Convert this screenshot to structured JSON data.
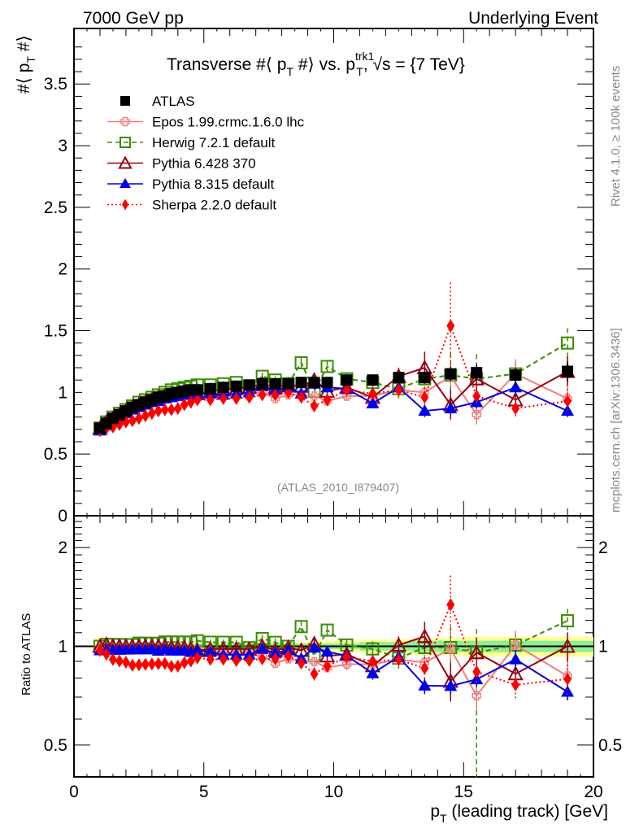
{
  "header": {
    "left": "7000 GeV pp",
    "right": "Underlying Event"
  },
  "side_text": {
    "rivet": "Rivet 4.1.0, ≥ 100k events",
    "mcplots": "mcplots.cern.ch [arXiv:1306.3436]"
  },
  "colors": {
    "ATLAS": "#000000",
    "Epos": "#f08080",
    "Herwig": "#3c8c00",
    "Pythia6": "#960014",
    "Pythia8": "#0000e6",
    "Sherpa": "#ff0000",
    "band_inner": "#90ee90",
    "band_outer": "#ffff99"
  },
  "chart_data": [
    {
      "type": "scatter",
      "title": "Transverse #⟨ p_T #⟩ vs. p_T^trk1, √s = {7 TeV}",
      "title_parts": {
        "a": "Transverse #⟨ p",
        "sub1": "T",
        "b": " #⟩ vs. p",
        "sup": "trk1",
        "sub2": "T",
        "c": ", √s = {7 TeV}"
      },
      "ylabel": "#⟨ p_T #⟩",
      "ylabel_parts": {
        "a": "#⟨ p",
        "sub": "T",
        "b": " #⟩"
      },
      "xlabel": "",
      "xlim": [
        0,
        20.3
      ],
      "ylim": [
        0,
        3.95
      ],
      "yscale": "linear",
      "yticks": [
        0,
        0.5,
        1,
        1.5,
        2,
        2.5,
        3,
        3.5
      ],
      "ytick_labels": [
        "0",
        "0.5",
        "1",
        "1.5",
        "2",
        "2.5",
        "3",
        "3.5"
      ],
      "annotation": "(ATLAS_2010_I879407)",
      "legend_position": "top-left",
      "x": [
        1.0,
        1.25,
        1.5,
        1.75,
        2.0,
        2.25,
        2.5,
        2.75,
        3.0,
        3.25,
        3.5,
        3.75,
        4.0,
        4.25,
        4.5,
        4.75,
        5.25,
        5.75,
        6.25,
        6.75,
        7.25,
        7.75,
        8.25,
        8.75,
        9.25,
        9.75,
        10.5,
        11.5,
        12.5,
        13.5,
        14.5,
        15.5,
        17,
        19
      ],
      "series": [
        {
          "name": "ATLAS",
          "key": "ATLAS",
          "marker": "square-filled",
          "line": "none",
          "values": [
            0.71,
            0.75,
            0.79,
            0.82,
            0.85,
            0.88,
            0.9,
            0.92,
            0.94,
            0.96,
            0.97,
            0.99,
            1.0,
            1.01,
            1.02,
            1.02,
            1.03,
            1.04,
            1.05,
            1.06,
            1.07,
            1.07,
            1.07,
            1.08,
            1.08,
            1.08,
            1.1,
            1.1,
            1.12,
            1.12,
            1.15,
            1.16,
            1.14,
            1.17
          ],
          "err": [
            0.02,
            0.02,
            0.02,
            0.02,
            0.02,
            0.02,
            0.02,
            0.02,
            0.02,
            0.02,
            0.02,
            0.02,
            0.02,
            0.02,
            0.02,
            0.02,
            0.02,
            0.02,
            0.02,
            0.02,
            0.02,
            0.02,
            0.02,
            0.02,
            0.03,
            0.03,
            0.03,
            0.04,
            0.04,
            0.05,
            0.06,
            0.06,
            0.06,
            0.08
          ]
        },
        {
          "name": "Epos 1.99.crmc.1.6.0 lhc",
          "key": "Epos",
          "marker": "cross-open",
          "line": "solid",
          "values": [
            0.7,
            0.74,
            0.78,
            0.81,
            0.84,
            0.87,
            0.89,
            0.91,
            0.93,
            0.95,
            0.96,
            0.97,
            0.98,
            0.99,
            1.0,
            1.0,
            1.0,
            1.0,
            1.0,
            1.0,
            1.0,
            0.95,
            0.98,
            0.98,
            0.97,
            0.93,
            0.97,
            0.97,
            1.02,
            1.0,
            1.13,
            0.82,
            1.15,
            0.95
          ],
          "err": [
            0.01,
            0.01,
            0.01,
            0.01,
            0.01,
            0.01,
            0.01,
            0.01,
            0.01,
            0.01,
            0.01,
            0.01,
            0.01,
            0.01,
            0.01,
            0.01,
            0.02,
            0.02,
            0.02,
            0.02,
            0.02,
            0.03,
            0.03,
            0.03,
            0.03,
            0.03,
            0.04,
            0.04,
            0.05,
            0.05,
            0.08,
            0.08,
            0.12,
            0.14
          ]
        },
        {
          "name": "Herwig 7.2.1 default",
          "key": "Herwig",
          "marker": "square-open",
          "line": "dashed",
          "values": [
            0.71,
            0.76,
            0.8,
            0.83,
            0.86,
            0.89,
            0.92,
            0.94,
            0.96,
            0.98,
            1.0,
            1.02,
            1.03,
            1.04,
            1.05,
            1.06,
            1.06,
            1.07,
            1.08,
            1.05,
            1.13,
            1.1,
            1.07,
            1.24,
            1.01,
            1.21,
            1.11,
            1.08,
            1.03,
            1.11,
            1.14,
            1.11,
            1.15,
            1.4
          ],
          "err": [
            0.01,
            0.01,
            0.01,
            0.01,
            0.01,
            0.01,
            0.01,
            0.01,
            0.01,
            0.01,
            0.01,
            0.01,
            0.01,
            0.01,
            0.02,
            0.02,
            0.02,
            0.02,
            0.02,
            0.02,
            0.03,
            0.03,
            0.03,
            0.05,
            0.05,
            0.05,
            0.05,
            0.06,
            0.08,
            0.14,
            0.18,
            0.2,
            0.1,
            0.12
          ]
        },
        {
          "name": "Pythia 6.428 370",
          "key": "Pythia6",
          "marker": "triangle-open",
          "line": "solid",
          "values": [
            0.71,
            0.76,
            0.79,
            0.82,
            0.85,
            0.88,
            0.9,
            0.92,
            0.94,
            0.96,
            0.97,
            0.98,
            0.99,
            1.0,
            1.0,
            0.99,
            1.01,
            1.02,
            1.03,
            1.04,
            1.07,
            1.04,
            1.06,
            1.05,
            1.1,
            1.01,
            1.04,
            0.96,
            1.13,
            1.2,
            0.9,
            1.11,
            0.94,
            1.17
          ],
          "err": [
            0.01,
            0.01,
            0.01,
            0.01,
            0.01,
            0.01,
            0.01,
            0.01,
            0.01,
            0.01,
            0.01,
            0.01,
            0.01,
            0.01,
            0.01,
            0.01,
            0.02,
            0.02,
            0.02,
            0.02,
            0.03,
            0.03,
            0.03,
            0.04,
            0.05,
            0.05,
            0.05,
            0.06,
            0.07,
            0.13,
            0.12,
            0.12,
            0.1,
            0.12
          ]
        },
        {
          "name": "Pythia 8.315 default",
          "key": "Pythia8",
          "marker": "triangle-filled",
          "line": "solid",
          "values": [
            0.69,
            0.73,
            0.77,
            0.8,
            0.83,
            0.86,
            0.88,
            0.9,
            0.92,
            0.93,
            0.95,
            0.96,
            0.97,
            0.98,
            0.98,
            0.99,
            0.99,
            0.98,
            0.99,
            1.0,
            1.05,
            1.02,
            1.04,
            0.99,
            1.07,
            1.04,
            1.03,
            0.91,
            1.04,
            0.85,
            0.87,
            0.92,
            1.04,
            0.85
          ],
          "err": [
            0.01,
            0.01,
            0.01,
            0.01,
            0.01,
            0.01,
            0.01,
            0.01,
            0.01,
            0.01,
            0.01,
            0.01,
            0.01,
            0.01,
            0.01,
            0.01,
            0.02,
            0.02,
            0.02,
            0.02,
            0.03,
            0.03,
            0.03,
            0.03,
            0.04,
            0.04,
            0.04,
            0.04,
            0.05,
            0.05,
            0.05,
            0.05,
            0.07,
            0.05
          ]
        },
        {
          "name": "Sherpa 2.2.0 default",
          "key": "Sherpa",
          "marker": "diamond-filled",
          "line": "dotted",
          "values": [
            0.69,
            0.71,
            0.72,
            0.74,
            0.76,
            0.77,
            0.79,
            0.81,
            0.83,
            0.85,
            0.86,
            0.86,
            0.87,
            0.9,
            0.92,
            0.94,
            0.94,
            0.95,
            0.95,
            0.96,
            0.98,
            0.98,
            1.0,
            0.96,
            0.89,
            0.94,
            1.02,
            0.99,
            1.02,
            0.96,
            1.54,
            0.97,
            0.87,
            0.93
          ],
          "err": [
            0.01,
            0.01,
            0.01,
            0.01,
            0.01,
            0.01,
            0.01,
            0.01,
            0.01,
            0.01,
            0.01,
            0.01,
            0.01,
            0.01,
            0.01,
            0.01,
            0.02,
            0.02,
            0.02,
            0.02,
            0.03,
            0.03,
            0.03,
            0.03,
            0.04,
            0.04,
            0.05,
            0.05,
            0.06,
            0.08,
            0.35,
            0.08,
            0.08,
            0.1
          ]
        }
      ]
    },
    {
      "type": "scatter",
      "title": "",
      "ylabel": "Ratio to ATLAS",
      "xlabel": "p_T (leading track) [GeV]",
      "xlabel_parts": {
        "a": "p",
        "sub": "T",
        "b": " (leading track) [GeV]"
      },
      "xlim": [
        0,
        20.3
      ],
      "xticks": [
        0,
        5,
        10,
        15,
        20
      ],
      "xtick_labels": [
        "0",
        "5",
        "10",
        "15",
        "20"
      ],
      "ylim": [
        0.4,
        2.5
      ],
      "yscale": "log",
      "yticks": [
        0.5,
        1,
        2
      ],
      "ytick_labels": [
        "0.5",
        "1",
        "2"
      ],
      "reference_line": 1,
      "band_note": "ATLAS uncertainty bands (stat inner, total outer)",
      "band_inner_rel": [
        0.04,
        0.02,
        0.02,
        0.02,
        0.02,
        0.02,
        0.02,
        0.02,
        0.02,
        0.02,
        0.02,
        0.02,
        0.02,
        0.02,
        0.02,
        0.02,
        0.02,
        0.02,
        0.02,
        0.02,
        0.02,
        0.02,
        0.02,
        0.02,
        0.02,
        0.02,
        0.02,
        0.03,
        0.03,
        0.04,
        0.04,
        0.04,
        0.04,
        0.04
      ],
      "band_outer_rel": [
        0.07,
        0.03,
        0.03,
        0.03,
        0.03,
        0.03,
        0.03,
        0.03,
        0.03,
        0.03,
        0.03,
        0.03,
        0.03,
        0.03,
        0.03,
        0.03,
        0.03,
        0.03,
        0.03,
        0.03,
        0.03,
        0.03,
        0.03,
        0.03,
        0.04,
        0.04,
        0.04,
        0.05,
        0.05,
        0.06,
        0.06,
        0.07,
        0.07,
        0.07
      ]
    }
  ]
}
